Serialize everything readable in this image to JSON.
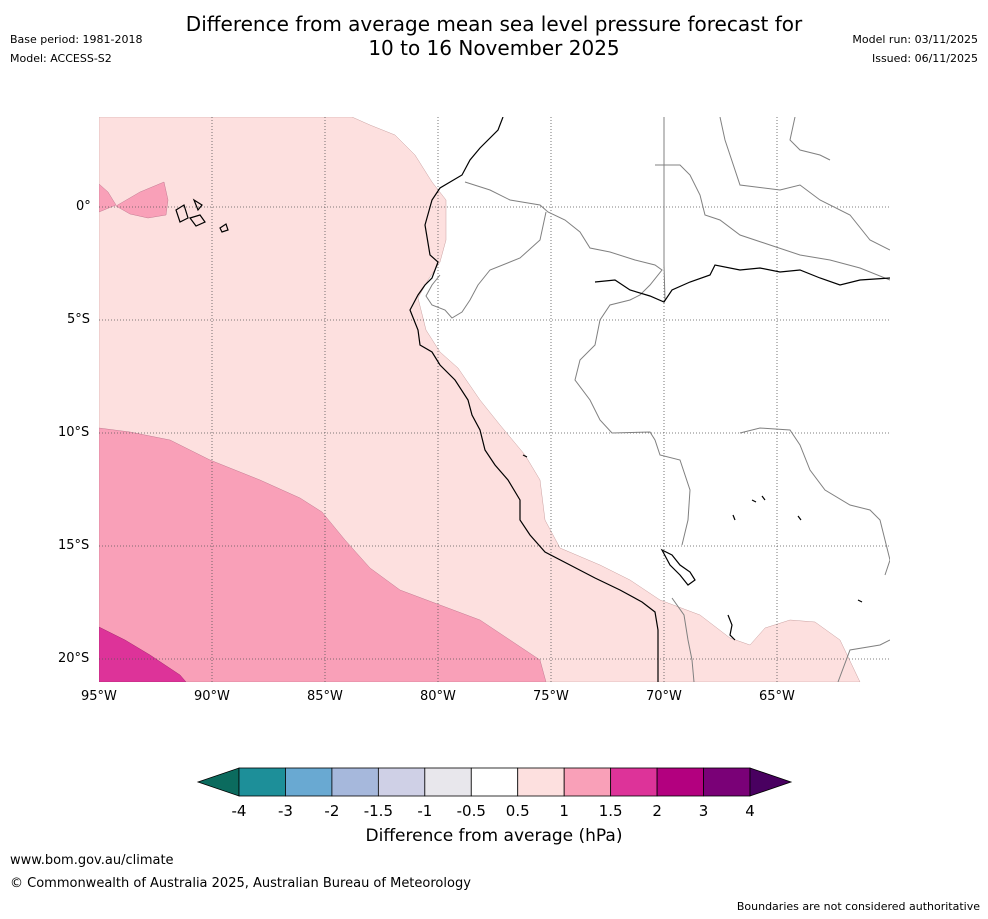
{
  "header": {
    "title_line1": "Difference from average mean sea level pressure forecast for",
    "title_line2": "10 to 16 November 2025",
    "base_period": "Base period: 1981-2018",
    "model": "Model: ACCESS-S2",
    "model_run": "Model run: 03/11/2025",
    "issued": "Issued: 06/11/2025"
  },
  "map": {
    "lat_labels": [
      "0°",
      "5°S",
      "10°S",
      "15°S",
      "20°S"
    ],
    "lon_labels": [
      "95°W",
      "90°W",
      "85°W",
      "80°W",
      "75°W",
      "70°W",
      "65°W"
    ]
  },
  "colorbar": {
    "label": "Difference from average (hPa)",
    "ticks": [
      "-4",
      "-3",
      "-2",
      "-1.5",
      "-1",
      "-0.5",
      "0.5",
      "1",
      "1.5",
      "2",
      "3",
      "4"
    ],
    "colors": {
      "below_min": "#0b6b5e",
      "bins": [
        "#1d8f99",
        "#69a9d2",
        "#a6b8dc",
        "#cfd0e6",
        "#e8e7ec",
        "#ffffff",
        "#fde0df",
        "#f9a0b8",
        "#dd3399",
        "#b3007f",
        "#7a0177"
      ],
      "above_max": "#490060"
    }
  },
  "footer": {
    "url": "www.bom.gov.au/climate",
    "copyright": "© Commonwealth of Australia 2025, Australian Bureau of Meteorology",
    "disclaimer": "Boundaries are not considered authoritative"
  }
}
